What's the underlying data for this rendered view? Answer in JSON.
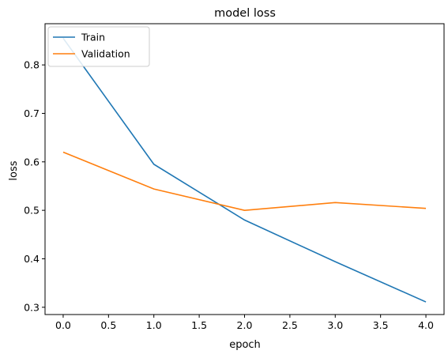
{
  "chart_data": {
    "type": "line",
    "title": "model loss",
    "xlabel": "epoch",
    "ylabel": "loss",
    "x": [
      0,
      1,
      2,
      3,
      4
    ],
    "xlim": [
      -0.2,
      4.2
    ],
    "ylim": [
      0.285,
      0.885
    ],
    "xticks": [
      "0.0",
      "0.5",
      "1.0",
      "1.5",
      "2.0",
      "2.5",
      "3.0",
      "3.5",
      "4.0"
    ],
    "xtick_values": [
      0,
      0.5,
      1,
      1.5,
      2,
      2.5,
      3,
      3.5,
      4
    ],
    "yticks": [
      "0.3",
      "0.4",
      "0.5",
      "0.6",
      "0.7",
      "0.8"
    ],
    "ytick_values": [
      0.3,
      0.4,
      0.5,
      0.6,
      0.7,
      0.8
    ],
    "grid": false,
    "legend_position": "top-left",
    "series": [
      {
        "name": "Train",
        "color": "#1f77b4",
        "values": [
          0.855,
          0.595,
          0.48,
          0.394,
          0.311
        ]
      },
      {
        "name": "Validation",
        "color": "#ff7f0e",
        "values": [
          0.62,
          0.544,
          0.5,
          0.516,
          0.504
        ]
      }
    ]
  }
}
